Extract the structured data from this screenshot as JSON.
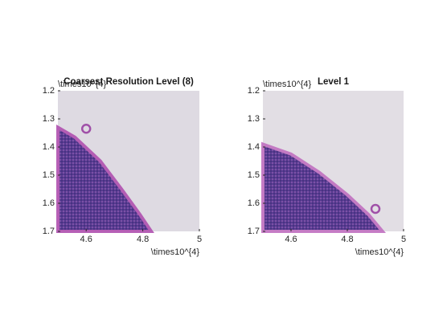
{
  "chart_data": [
    {
      "type": "image",
      "title": "Coarsest Resolution Level (8)",
      "xlim": [
        4.5,
        5
      ],
      "xticks": [
        4.6,
        4.8,
        5
      ],
      "x_exponent_label": "\\times10^{4}",
      "ylim": [
        1.2,
        1.7
      ],
      "yticks": [
        1.2,
        1.3,
        1.4,
        1.5,
        1.6,
        1.7
      ],
      "y_exponent_label": "\\times10^{4}",
      "y_reversed": true
    },
    {
      "type": "image",
      "title": "Level 1",
      "xlim": [
        4.5,
        5
      ],
      "xticks": [
        4.6,
        4.8,
        5
      ],
      "x_exponent_label": "\\times10^{4}",
      "ylim": [
        1.2,
        1.7
      ],
      "yticks": [
        1.2,
        1.3,
        1.4,
        1.5,
        1.6,
        1.7
      ],
      "y_exponent_label": "\\times10^{4}",
      "y_reversed": true
    }
  ]
}
